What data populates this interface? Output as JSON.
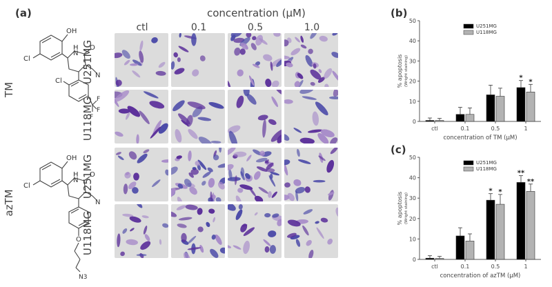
{
  "panels": {
    "a": "(a)",
    "b": "(b)",
    "c": "(c)"
  },
  "figure_a": {
    "concentration_title": "concentration (μM)",
    "columns": [
      "ctl",
      "0.1",
      "0.5",
      "1.0"
    ],
    "rows": [
      "U251MG",
      "U118MG",
      "U251MG",
      "U118MG"
    ],
    "compounds": [
      "TM",
      "azTM"
    ],
    "tm_structure": {
      "oh": "OH",
      "h": "H",
      "n": "N",
      "o": "O",
      "cl1": "Cl",
      "cl2": "Cl",
      "cn": "N",
      "f1": "F",
      "f2": "F",
      "f3": "F"
    },
    "aztm_structure": {
      "oh": "OH",
      "h": "H",
      "n": "N",
      "o": "O",
      "cl": "Cl",
      "cn": "N",
      "o2": "O",
      "n3": "N3"
    },
    "colors": {
      "background": "#dcdcdc",
      "cell_light": "#a78bc9",
      "cell_dark": "#5b2f9a",
      "cell_blue": "#4b4aa8"
    }
  },
  "chart_data": [
    {
      "type": "bar",
      "title": "",
      "xlabel": "concentration of TM (μM)",
      "ylabel": "% apoptosis",
      "ylabel_sub": "(Wright staining)",
      "categories": [
        "ctl",
        "0.1",
        "0.5",
        "1"
      ],
      "ylim": [
        0,
        50
      ],
      "yticks": [
        0,
        10,
        20,
        30,
        40,
        50
      ],
      "legend_position": "top-center",
      "grid": false,
      "series": [
        {
          "name": "U251MG",
          "color": "#000000",
          "values": [
            0.5,
            3.5,
            13.2,
            16.8
          ],
          "errors": [
            1.2,
            3.5,
            4.8,
            3.5
          ],
          "significance": [
            "",
            "",
            "",
            "*"
          ]
        },
        {
          "name": "U118MG",
          "color": "#b3b3b3",
          "values": [
            0.5,
            3.5,
            12.5,
            14.6
          ],
          "errors": [
            1.0,
            3.2,
            4.0,
            3.8
          ],
          "significance": [
            "",
            "",
            "",
            "*"
          ]
        }
      ]
    },
    {
      "type": "bar",
      "title": "",
      "xlabel": "concentration of azTM (μM)",
      "ylabel": "% apoptosis",
      "ylabel_sub": "(Wright staining)",
      "categories": [
        "ctl",
        "0.1",
        "0.5",
        "1"
      ],
      "ylim": [
        0,
        50
      ],
      "yticks": [
        0,
        10,
        20,
        30,
        40,
        50
      ],
      "legend_position": "top-center",
      "grid": false,
      "series": [
        {
          "name": "U251MG",
          "color": "#000000",
          "values": [
            0.6,
            11.5,
            29.0,
            37.7
          ],
          "errors": [
            1.2,
            4.0,
            3.2,
            3.3
          ],
          "significance": [
            "",
            "",
            "*",
            "**"
          ]
        },
        {
          "name": "U118MG",
          "color": "#b3b3b3",
          "values": [
            0.5,
            9.0,
            27.0,
            33.3
          ],
          "errors": [
            1.0,
            3.5,
            4.8,
            3.6
          ],
          "significance": [
            "",
            "",
            "*",
            "**"
          ]
        }
      ]
    }
  ]
}
